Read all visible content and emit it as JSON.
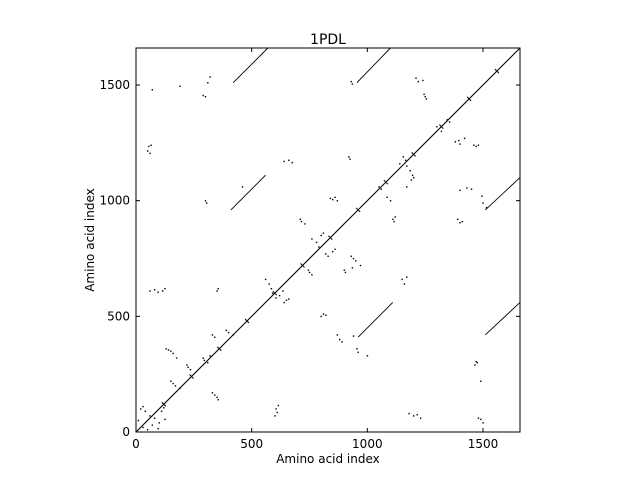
{
  "chart_data": {
    "type": "scatter",
    "title": "1PDL",
    "xlabel": "Amino acid index",
    "ylabel": "Amino acid index",
    "xlim": [
      0,
      1660
    ],
    "ylim": [
      0,
      1660
    ],
    "xticks": [
      0,
      500,
      1000,
      1500
    ],
    "yticks": [
      0,
      500,
      1000,
      1500
    ],
    "grid": false,
    "legend": "none",
    "marker_color": "#000000",
    "segments": [
      {
        "name": "main-diagonal",
        "from": [
          0,
          0
        ],
        "to": [
          1660,
          1660
        ]
      },
      {
        "name": "off-diagonal-1",
        "from": [
          420,
          1510
        ],
        "to": [
          570,
          1660
        ]
      },
      {
        "name": "off-diagonal-2",
        "from": [
          955,
          1510
        ],
        "to": [
          1100,
          1660
        ]
      },
      {
        "name": "off-diagonal-3",
        "from": [
          410,
          960
        ],
        "to": [
          560,
          1110
        ]
      },
      {
        "name": "off-diagonal-4",
        "from": [
          1510,
          960
        ],
        "to": [
          1660,
          1100
        ]
      },
      {
        "name": "off-diagonal-5",
        "from": [
          960,
          410
        ],
        "to": [
          1110,
          560
        ]
      },
      {
        "name": "off-diagonal-6",
        "from": [
          1510,
          420
        ],
        "to": [
          1660,
          560
        ]
      }
    ],
    "points": [
      [
        70,
        1480
      ],
      [
        190,
        1495
      ],
      [
        290,
        1455
      ],
      [
        300,
        1450
      ],
      [
        310,
        1510
      ],
      [
        320,
        1535
      ],
      [
        55,
        1235
      ],
      [
        65,
        1240
      ],
      [
        50,
        1215
      ],
      [
        60,
        1205
      ],
      [
        930,
        1515
      ],
      [
        935,
        1505
      ],
      [
        1210,
        1530
      ],
      [
        1220,
        1515
      ],
      [
        1240,
        1520
      ],
      [
        1245,
        1460
      ],
      [
        1250,
        1450
      ],
      [
        1255,
        1440
      ],
      [
        1155,
        1190
      ],
      [
        1165,
        1175
      ],
      [
        1140,
        1160
      ],
      [
        1170,
        1150
      ],
      [
        1185,
        1130
      ],
      [
        1195,
        1110
      ],
      [
        1200,
        1100
      ],
      [
        1190,
        1090
      ],
      [
        1300,
        1320
      ],
      [
        1320,
        1300
      ],
      [
        1345,
        1350
      ],
      [
        1355,
        1340
      ],
      [
        1380,
        1255
      ],
      [
        1395,
        1260
      ],
      [
        1400,
        1245
      ],
      [
        1420,
        1270
      ],
      [
        1460,
        1240
      ],
      [
        1470,
        1235
      ],
      [
        1480,
        1240
      ],
      [
        920,
        1190
      ],
      [
        925,
        1180
      ],
      [
        640,
        1170
      ],
      [
        660,
        1175
      ],
      [
        675,
        1165
      ],
      [
        300,
        1000
      ],
      [
        305,
        990
      ],
      [
        460,
        1060
      ],
      [
        1050,
        1060
      ],
      [
        1060,
        1050
      ],
      [
        1085,
        1015
      ],
      [
        1100,
        1000
      ],
      [
        1110,
        920
      ],
      [
        1120,
        930
      ],
      [
        1115,
        910
      ],
      [
        1170,
        1060
      ],
      [
        1400,
        1045
      ],
      [
        1430,
        1055
      ],
      [
        1450,
        1050
      ],
      [
        1390,
        920
      ],
      [
        1400,
        905
      ],
      [
        1410,
        910
      ],
      [
        1495,
        1020
      ],
      [
        1500,
        990
      ],
      [
        1515,
        970
      ],
      [
        840,
        1010
      ],
      [
        850,
        1005
      ],
      [
        860,
        1015
      ],
      [
        870,
        1000
      ],
      [
        850,
        780
      ],
      [
        860,
        790
      ],
      [
        830,
        760
      ],
      [
        820,
        770
      ],
      [
        800,
        850
      ],
      [
        810,
        860
      ],
      [
        780,
        820
      ],
      [
        760,
        835
      ],
      [
        790,
        800
      ],
      [
        710,
        920
      ],
      [
        715,
        910
      ],
      [
        730,
        900
      ],
      [
        745,
        700
      ],
      [
        750,
        690
      ],
      [
        760,
        680
      ],
      [
        930,
        760
      ],
      [
        940,
        750
      ],
      [
        950,
        740
      ],
      [
        970,
        720
      ],
      [
        900,
        700
      ],
      [
        905,
        690
      ],
      [
        935,
        710
      ],
      [
        1150,
        660
      ],
      [
        1160,
        640
      ],
      [
        1170,
        670
      ],
      [
        560,
        660
      ],
      [
        575,
        640
      ],
      [
        585,
        620
      ],
      [
        590,
        600
      ],
      [
        605,
        580
      ],
      [
        620,
        590
      ],
      [
        635,
        610
      ],
      [
        640,
        560
      ],
      [
        650,
        570
      ],
      [
        660,
        575
      ],
      [
        60,
        610
      ],
      [
        80,
        615
      ],
      [
        95,
        605
      ],
      [
        115,
        610
      ],
      [
        125,
        620
      ],
      [
        350,
        610
      ],
      [
        355,
        620
      ],
      [
        800,
        500
      ],
      [
        810,
        510
      ],
      [
        820,
        505
      ],
      [
        390,
        440
      ],
      [
        400,
        430
      ],
      [
        420,
        420
      ],
      [
        330,
        420
      ],
      [
        340,
        410
      ],
      [
        870,
        420
      ],
      [
        880,
        400
      ],
      [
        890,
        390
      ],
      [
        940,
        415
      ],
      [
        955,
        360
      ],
      [
        960,
        345
      ],
      [
        1000,
        330
      ],
      [
        130,
        360
      ],
      [
        140,
        355
      ],
      [
        150,
        350
      ],
      [
        160,
        340
      ],
      [
        175,
        320
      ],
      [
        220,
        290
      ],
      [
        225,
        280
      ],
      [
        235,
        270
      ],
      [
        290,
        320
      ],
      [
        295,
        310
      ],
      [
        310,
        300
      ],
      [
        320,
        330
      ],
      [
        330,
        170
      ],
      [
        340,
        160
      ],
      [
        350,
        150
      ],
      [
        355,
        140
      ],
      [
        150,
        220
      ],
      [
        160,
        210
      ],
      [
        170,
        200
      ],
      [
        190,
        190
      ],
      [
        20,
        100
      ],
      [
        30,
        110
      ],
      [
        40,
        90
      ],
      [
        60,
        70
      ],
      [
        80,
        60
      ],
      [
        100,
        40
      ],
      [
        110,
        90
      ],
      [
        120,
        105
      ],
      [
        125,
        55
      ],
      [
        95,
        15
      ],
      [
        600,
        70
      ],
      [
        610,
        85
      ],
      [
        605,
        100
      ],
      [
        615,
        115
      ],
      [
        1180,
        80
      ],
      [
        1200,
        70
      ],
      [
        1215,
        75
      ],
      [
        1230,
        60
      ],
      [
        1480,
        60
      ],
      [
        1490,
        55
      ],
      [
        1500,
        40
      ],
      [
        1465,
        290
      ],
      [
        1470,
        305
      ],
      [
        1475,
        300
      ],
      [
        1490,
        220
      ],
      [
        30,
        20
      ],
      [
        10,
        50
      ],
      [
        50,
        10
      ],
      [
        70,
        30
      ]
    ]
  }
}
